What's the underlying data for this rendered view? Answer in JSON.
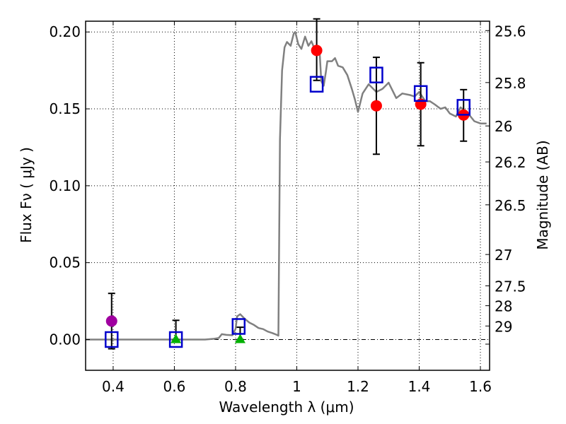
{
  "chart_data": {
    "type": "scatter",
    "title": "",
    "xlabel": "Wavelength  λ (μm)",
    "ylabel": "Flux  Fν  ( μJy )",
    "ylabel_right": "Magnitude (AB)",
    "xlim": [
      0.31,
      1.63
    ],
    "ylim": [
      -0.02,
      0.207
    ],
    "grid": true,
    "x_ticks": [
      {
        "value": 0.4,
        "label": "0.4"
      },
      {
        "value": 0.6,
        "label": "0.6"
      },
      {
        "value": 0.8,
        "label": "0.8"
      },
      {
        "value": 1.0,
        "label": "1"
      },
      {
        "value": 1.2,
        "label": "1.2"
      },
      {
        "value": 1.4,
        "label": "1.4"
      },
      {
        "value": 1.6,
        "label": "1.6"
      }
    ],
    "y_ticks": [
      {
        "value": 0.0,
        "label": "0.00"
      },
      {
        "value": 0.05,
        "label": "0.05"
      },
      {
        "value": 0.1,
        "label": "0.10"
      },
      {
        "value": 0.15,
        "label": "0.15"
      },
      {
        "value": 0.2,
        "label": "0.20"
      }
    ],
    "right_ticks": [
      {
        "flux": 0.2009,
        "label": "25.6"
      },
      {
        "flux": 0.1671,
        "label": "25.8"
      },
      {
        "flux": 0.1389,
        "label": "26"
      },
      {
        "flux": 0.1155,
        "label": "26.2"
      },
      {
        "flux": 0.0876,
        "label": "26.5"
      },
      {
        "flux": 0.0553,
        "label": "27"
      },
      {
        "flux": 0.0349,
        "label": "27.5"
      },
      {
        "flux": 0.022,
        "label": "28"
      },
      {
        "flux": 0.0088,
        "label": "29"
      },
      {
        "flux": -0.003,
        "label": ""
      }
    ],
    "zero_line": {
      "y": 0.0,
      "style": "dash-dot"
    },
    "series": [
      {
        "name": "model-sed",
        "kind": "line",
        "color": "#808080",
        "points": [
          [
            0.31,
            0.0
          ],
          [
            0.7,
            0.0
          ],
          [
            0.73,
            0.0005
          ],
          [
            0.745,
            0.001
          ],
          [
            0.755,
            0.0035
          ],
          [
            0.77,
            0.003
          ],
          [
            0.79,
            0.0028
          ],
          [
            0.8,
            0.007
          ],
          [
            0.805,
            0.015
          ],
          [
            0.815,
            0.0165
          ],
          [
            0.83,
            0.0135
          ],
          [
            0.845,
            0.011
          ],
          [
            0.86,
            0.0095
          ],
          [
            0.875,
            0.0075
          ],
          [
            0.89,
            0.0068
          ],
          [
            0.905,
            0.0052
          ],
          [
            0.92,
            0.0042
          ],
          [
            0.935,
            0.003
          ],
          [
            0.94,
            0.0025
          ],
          [
            0.945,
            0.13
          ],
          [
            0.952,
            0.175
          ],
          [
            0.96,
            0.19
          ],
          [
            0.968,
            0.1935
          ],
          [
            0.98,
            0.191
          ],
          [
            0.99,
            0.199
          ],
          [
            0.995,
            0.2
          ],
          [
            1.005,
            0.192
          ],
          [
            1.015,
            0.189
          ],
          [
            1.027,
            0.197
          ],
          [
            1.038,
            0.191
          ],
          [
            1.048,
            0.194
          ],
          [
            1.058,
            0.189
          ],
          [
            1.068,
            0.188
          ],
          [
            1.075,
            0.186
          ],
          [
            1.08,
            0.168
          ],
          [
            1.088,
            0.165
          ],
          [
            1.095,
            0.174
          ],
          [
            1.1,
            0.181
          ],
          [
            1.115,
            0.181
          ],
          [
            1.125,
            0.183
          ],
          [
            1.135,
            0.178
          ],
          [
            1.15,
            0.177
          ],
          [
            1.165,
            0.172
          ],
          [
            1.18,
            0.163
          ],
          [
            1.19,
            0.156
          ],
          [
            1.2,
            0.148
          ],
          [
            1.215,
            0.16
          ],
          [
            1.235,
            0.166
          ],
          [
            1.26,
            0.161
          ],
          [
            1.28,
            0.163
          ],
          [
            1.3,
            0.167
          ],
          [
            1.325,
            0.157
          ],
          [
            1.345,
            0.16
          ],
          [
            1.37,
            0.159
          ],
          [
            1.385,
            0.158
          ],
          [
            1.4,
            0.161
          ],
          [
            1.42,
            0.155
          ],
          [
            1.435,
            0.155
          ],
          [
            1.45,
            0.153
          ],
          [
            1.47,
            0.15
          ],
          [
            1.485,
            0.151
          ],
          [
            1.5,
            0.147
          ],
          [
            1.52,
            0.145
          ],
          [
            1.535,
            0.151
          ],
          [
            1.56,
            0.147
          ],
          [
            1.58,
            0.142
          ],
          [
            1.6,
            0.1405
          ],
          [
            1.62,
            0.1405
          ]
        ]
      },
      {
        "name": "observed-magenta",
        "kind": "circle",
        "color": "#a000a0",
        "points": [
          {
            "x": 0.395,
            "y": 0.012,
            "yerr_low": 0.018,
            "yerr_high": 0.018
          }
        ]
      },
      {
        "name": "observed-red",
        "kind": "circle",
        "color": "#ff0000",
        "points": [
          {
            "x": 1.065,
            "y": 0.188,
            "yerr_low": 0.0195,
            "yerr_high": 0.0205
          },
          {
            "x": 1.26,
            "y": 0.152,
            "yerr_low": 0.0315,
            "yerr_high": 0.0315
          },
          {
            "x": 1.405,
            "y": 0.153,
            "yerr_low": 0.027,
            "yerr_high": 0.027
          },
          {
            "x": 1.545,
            "y": 0.146,
            "yerr_low": 0.017,
            "yerr_high": 0.0165
          }
        ]
      },
      {
        "name": "observed-green",
        "kind": "triangle",
        "color": "#00b000",
        "points": [
          {
            "x": 0.605,
            "y": 0.0,
            "yerr_low": 0.0,
            "yerr_high": 0.0125
          },
          {
            "x": 0.815,
            "y": 0.0,
            "yerr_low": 0.0,
            "yerr_high": 0.008
          }
        ]
      },
      {
        "name": "model-photometry",
        "kind": "square",
        "color": "#0000cc",
        "points": [
          {
            "x": 0.395,
            "y": 0.0
          },
          {
            "x": 0.605,
            "y": 0.0
          },
          {
            "x": 0.81,
            "y": 0.0085
          },
          {
            "x": 1.065,
            "y": 0.166
          },
          {
            "x": 1.26,
            "y": 0.172
          },
          {
            "x": 1.405,
            "y": 0.16
          },
          {
            "x": 1.545,
            "y": 0.151
          }
        ]
      }
    ]
  }
}
